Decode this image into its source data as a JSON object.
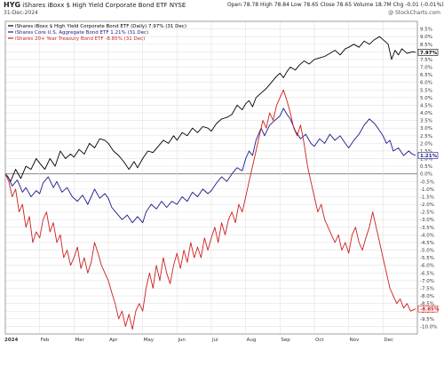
{
  "header": {
    "ticker": "HYG",
    "name": "iShares iBoxx $ High Yield Corporate Bond ETF",
    "exchange": "NYSE",
    "date": "31-Dec-2024",
    "stats": "Open 78.78 High 78.84 Low 78.65 Close 78.65 Volume 18.7M Chg -0.01 (-0.01%)",
    "watermark": "@ StockCharts.com"
  },
  "chart_data": {
    "type": "line",
    "x_start_label": "2024",
    "categories": [
      "2024",
      "Feb",
      "Mar",
      "Apr",
      "May",
      "Jun",
      "Jul",
      "Aug",
      "Sep",
      "Oct",
      "Nov",
      "Dec"
    ],
    "ylim": [
      -10.5,
      10
    ],
    "y_ticks": [
      9.5,
      9.0,
      8.5,
      8.0,
      7.5,
      7.0,
      6.5,
      6.0,
      5.5,
      5.0,
      4.5,
      4.0,
      3.5,
      3.0,
      2.5,
      2.0,
      1.5,
      1.0,
      0.5,
      0.0,
      -0.5,
      -1.0,
      -1.5,
      -2.0,
      -2.5,
      -3.0,
      -3.5,
      -4.0,
      -4.5,
      -5.0,
      -5.5,
      -6.0,
      -6.5,
      -7.0,
      -7.5,
      -8.0,
      -8.5,
      -9.0,
      -9.5,
      -10.0
    ],
    "y_tick_labels": [
      "9.5%",
      "9.0%",
      "8.5%",
      "8.0%",
      "7.5%",
      "7.0%",
      "6.5%",
      "6.0%",
      "5.5%",
      "5.0%",
      "4.5%",
      "4.0%",
      "3.5%",
      "3.0%",
      "2.5%",
      "2.0%",
      "1.5%",
      "1.0%",
      "0.5%",
      "0.0%",
      "-0.5%",
      "-1.0%",
      "-1.5%",
      "-2.0%",
      "-2.5%",
      "-3.0%",
      "-3.5%",
      "-4.0%",
      "-4.5%",
      "-5.0%",
      "-5.5%",
      "-6.0%",
      "-6.5%",
      "-7.0%",
      "-7.5%",
      "-8.0%",
      "-8.5%",
      "-9.0%",
      "-9.5%",
      "-10.0%"
    ],
    "x_max": 12,
    "series": [
      {
        "name": "iShares iBoxx $ High Yield Corporate Bond ETF (Daily) 7.97% (31 Dec)",
        "color": "#000000",
        "end_label": "7.97%",
        "end_value": 7.97,
        "points": [
          [
            0,
            0
          ],
          [
            0.08,
            -0.2
          ],
          [
            0.15,
            -0.5
          ],
          [
            0.3,
            0.3
          ],
          [
            0.45,
            -0.3
          ],
          [
            0.6,
            0.5
          ],
          [
            0.75,
            0.3
          ],
          [
            0.9,
            1.0
          ],
          [
            1.0,
            0.7
          ],
          [
            1.15,
            0.3
          ],
          [
            1.3,
            1.0
          ],
          [
            1.45,
            0.5
          ],
          [
            1.6,
            1.5
          ],
          [
            1.75,
            1.0
          ],
          [
            1.9,
            1.3
          ],
          [
            2.0,
            1.1
          ],
          [
            2.15,
            1.6
          ],
          [
            2.3,
            1.3
          ],
          [
            2.45,
            2.0
          ],
          [
            2.6,
            1.7
          ],
          [
            2.75,
            2.3
          ],
          [
            2.9,
            2.2
          ],
          [
            3.0,
            2.0
          ],
          [
            3.15,
            1.5
          ],
          [
            3.3,
            1.2
          ],
          [
            3.45,
            0.8
          ],
          [
            3.6,
            0.3
          ],
          [
            3.75,
            0.8
          ],
          [
            3.85,
            0.4
          ],
          [
            4.0,
            1.0
          ],
          [
            4.15,
            1.5
          ],
          [
            4.3,
            1.4
          ],
          [
            4.45,
            1.8
          ],
          [
            4.6,
            2.2
          ],
          [
            4.75,
            2.0
          ],
          [
            4.9,
            2.5
          ],
          [
            5.0,
            2.2
          ],
          [
            5.15,
            2.7
          ],
          [
            5.3,
            2.5
          ],
          [
            5.45,
            3.0
          ],
          [
            5.6,
            2.7
          ],
          [
            5.75,
            3.1
          ],
          [
            5.9,
            3.0
          ],
          [
            6.0,
            2.8
          ],
          [
            6.15,
            3.3
          ],
          [
            6.3,
            3.6
          ],
          [
            6.45,
            3.7
          ],
          [
            6.6,
            3.9
          ],
          [
            6.75,
            4.5
          ],
          [
            6.9,
            4.2
          ],
          [
            7.0,
            4.6
          ],
          [
            7.1,
            4.8
          ],
          [
            7.2,
            4.4
          ],
          [
            7.3,
            5.0
          ],
          [
            7.45,
            5.3
          ],
          [
            7.6,
            5.6
          ],
          [
            7.75,
            6.0
          ],
          [
            7.9,
            6.4
          ],
          [
            8.0,
            6.6
          ],
          [
            8.1,
            6.3
          ],
          [
            8.2,
            6.7
          ],
          [
            8.3,
            7.0
          ],
          [
            8.45,
            6.8
          ],
          [
            8.55,
            7.1
          ],
          [
            8.7,
            7.4
          ],
          [
            8.85,
            7.2
          ],
          [
            9.0,
            7.5
          ],
          [
            9.15,
            7.6
          ],
          [
            9.3,
            7.7
          ],
          [
            9.45,
            7.9
          ],
          [
            9.6,
            8.1
          ],
          [
            9.75,
            7.8
          ],
          [
            9.9,
            8.2
          ],
          [
            10.0,
            8.3
          ],
          [
            10.15,
            8.5
          ],
          [
            10.3,
            8.3
          ],
          [
            10.45,
            8.7
          ],
          [
            10.6,
            8.5
          ],
          [
            10.75,
            8.8
          ],
          [
            10.9,
            9.0
          ],
          [
            11.05,
            8.7
          ],
          [
            11.15,
            8.5
          ],
          [
            11.25,
            7.5
          ],
          [
            11.35,
            8.1
          ],
          [
            11.45,
            7.8
          ],
          [
            11.55,
            8.2
          ],
          [
            11.7,
            7.9
          ],
          [
            11.85,
            8.0
          ],
          [
            11.95,
            7.97
          ]
        ]
      },
      {
        "name": "iShares Core U.S. Aggregate Bond ETF 1.21% (31 Dec)",
        "color": "#1a1a8c",
        "end_label": "1.21%",
        "end_value": 1.21,
        "points": [
          [
            0,
            0
          ],
          [
            0.1,
            -0.3
          ],
          [
            0.2,
            -0.8
          ],
          [
            0.35,
            -0.4
          ],
          [
            0.5,
            -1.2
          ],
          [
            0.6,
            -0.9
          ],
          [
            0.75,
            -1.5
          ],
          [
            0.9,
            -1.1
          ],
          [
            1.0,
            -1.3
          ],
          [
            1.1,
            -0.6
          ],
          [
            1.25,
            -0.2
          ],
          [
            1.4,
            -0.9
          ],
          [
            1.5,
            -0.5
          ],
          [
            1.65,
            -1.2
          ],
          [
            1.8,
            -0.9
          ],
          [
            1.95,
            -1.5
          ],
          [
            2.1,
            -1.8
          ],
          [
            2.25,
            -1.4
          ],
          [
            2.4,
            -2.0
          ],
          [
            2.5,
            -1.5
          ],
          [
            2.6,
            -1.0
          ],
          [
            2.75,
            -1.6
          ],
          [
            2.9,
            -1.3
          ],
          [
            3.0,
            -1.6
          ],
          [
            3.1,
            -2.2
          ],
          [
            3.25,
            -2.6
          ],
          [
            3.4,
            -3.0
          ],
          [
            3.55,
            -2.7
          ],
          [
            3.7,
            -3.2
          ],
          [
            3.85,
            -2.8
          ],
          [
            4.0,
            -3.2
          ],
          [
            4.1,
            -2.5
          ],
          [
            4.25,
            -2.0
          ],
          [
            4.4,
            -2.3
          ],
          [
            4.55,
            -1.8
          ],
          [
            4.7,
            -2.2
          ],
          [
            4.85,
            -1.8
          ],
          [
            5.0,
            -2.0
          ],
          [
            5.15,
            -1.5
          ],
          [
            5.3,
            -1.8
          ],
          [
            5.45,
            -1.2
          ],
          [
            5.6,
            -1.5
          ],
          [
            5.75,
            -1.0
          ],
          [
            5.9,
            -1.3
          ],
          [
            6.0,
            -1.1
          ],
          [
            6.15,
            -0.6
          ],
          [
            6.3,
            -0.2
          ],
          [
            6.45,
            -0.5
          ],
          [
            6.6,
            0.0
          ],
          [
            6.75,
            0.4
          ],
          [
            6.9,
            0.2
          ],
          [
            7.0,
            1.0
          ],
          [
            7.1,
            1.5
          ],
          [
            7.2,
            1.2
          ],
          [
            7.3,
            2.2
          ],
          [
            7.45,
            3.0
          ],
          [
            7.55,
            2.5
          ],
          [
            7.7,
            3.2
          ],
          [
            7.85,
            3.5
          ],
          [
            8.0,
            3.8
          ],
          [
            8.1,
            4.3
          ],
          [
            8.2,
            3.9
          ],
          [
            8.3,
            3.6
          ],
          [
            8.45,
            2.8
          ],
          [
            8.6,
            2.3
          ],
          [
            8.75,
            2.6
          ],
          [
            8.9,
            2.0
          ],
          [
            9.0,
            1.8
          ],
          [
            9.15,
            2.3
          ],
          [
            9.3,
            2.0
          ],
          [
            9.45,
            2.6
          ],
          [
            9.6,
            2.2
          ],
          [
            9.75,
            2.5
          ],
          [
            9.9,
            2.0
          ],
          [
            10.0,
            1.7
          ],
          [
            10.15,
            2.2
          ],
          [
            10.3,
            2.6
          ],
          [
            10.45,
            3.2
          ],
          [
            10.6,
            3.6
          ],
          [
            10.75,
            3.3
          ],
          [
            10.85,
            3.0
          ],
          [
            11.0,
            2.5
          ],
          [
            11.1,
            2.0
          ],
          [
            11.2,
            2.2
          ],
          [
            11.3,
            1.5
          ],
          [
            11.45,
            1.7
          ],
          [
            11.6,
            1.2
          ],
          [
            11.75,
            1.5
          ],
          [
            11.85,
            1.3
          ],
          [
            11.95,
            1.21
          ]
        ]
      },
      {
        "name": "iShares 20+ Year Treasury Bond ETF -8.85% (31 Dec)",
        "color": "#cc1f1f",
        "end_label": "-8.85%",
        "end_value": -8.85,
        "points": [
          [
            0,
            0
          ],
          [
            0.1,
            -0.5
          ],
          [
            0.2,
            -1.5
          ],
          [
            0.3,
            -1.0
          ],
          [
            0.4,
            -2.5
          ],
          [
            0.5,
            -2.0
          ],
          [
            0.6,
            -3.5
          ],
          [
            0.7,
            -2.8
          ],
          [
            0.8,
            -4.5
          ],
          [
            0.9,
            -3.8
          ],
          [
            1.0,
            -4.2
          ],
          [
            1.1,
            -3.0
          ],
          [
            1.2,
            -2.5
          ],
          [
            1.3,
            -3.8
          ],
          [
            1.4,
            -3.2
          ],
          [
            1.5,
            -4.5
          ],
          [
            1.6,
            -4.0
          ],
          [
            1.7,
            -5.5
          ],
          [
            1.8,
            -5.0
          ],
          [
            1.9,
            -6.0
          ],
          [
            2.0,
            -5.5
          ],
          [
            2.1,
            -4.8
          ],
          [
            2.2,
            -6.2
          ],
          [
            2.3,
            -5.5
          ],
          [
            2.4,
            -6.5
          ],
          [
            2.5,
            -5.8
          ],
          [
            2.6,
            -4.5
          ],
          [
            2.7,
            -5.2
          ],
          [
            2.8,
            -6.0
          ],
          [
            2.9,
            -6.5
          ],
          [
            3.0,
            -7.0
          ],
          [
            3.1,
            -7.8
          ],
          [
            3.2,
            -8.5
          ],
          [
            3.3,
            -9.5
          ],
          [
            3.4,
            -9.0
          ],
          [
            3.5,
            -10.0
          ],
          [
            3.6,
            -9.2
          ],
          [
            3.7,
            -10.2
          ],
          [
            3.8,
            -9.0
          ],
          [
            3.9,
            -8.5
          ],
          [
            4.0,
            -9.0
          ],
          [
            4.1,
            -7.5
          ],
          [
            4.2,
            -6.5
          ],
          [
            4.3,
            -7.5
          ],
          [
            4.4,
            -6.0
          ],
          [
            4.5,
            -7.0
          ],
          [
            4.6,
            -5.5
          ],
          [
            4.7,
            -6.5
          ],
          [
            4.8,
            -7.2
          ],
          [
            4.9,
            -6.0
          ],
          [
            5.0,
            -5.2
          ],
          [
            5.1,
            -6.2
          ],
          [
            5.2,
            -5.0
          ],
          [
            5.3,
            -5.8
          ],
          [
            5.4,
            -4.5
          ],
          [
            5.5,
            -5.5
          ],
          [
            5.6,
            -4.8
          ],
          [
            5.7,
            -5.5
          ],
          [
            5.8,
            -4.2
          ],
          [
            5.9,
            -5.0
          ],
          [
            6.0,
            -4.2
          ],
          [
            6.1,
            -3.5
          ],
          [
            6.2,
            -4.5
          ],
          [
            6.3,
            -3.2
          ],
          [
            6.4,
            -4.0
          ],
          [
            6.5,
            -3.0
          ],
          [
            6.6,
            -2.5
          ],
          [
            6.7,
            -3.2
          ],
          [
            6.8,
            -2.0
          ],
          [
            6.9,
            -2.5
          ],
          [
            7.0,
            -1.5
          ],
          [
            7.1,
            -0.5
          ],
          [
            7.2,
            0.5
          ],
          [
            7.3,
            1.5
          ],
          [
            7.4,
            2.5
          ],
          [
            7.5,
            3.5
          ],
          [
            7.6,
            3.0
          ],
          [
            7.7,
            4.0
          ],
          [
            7.8,
            3.5
          ],
          [
            7.9,
            4.5
          ],
          [
            8.0,
            5.0
          ],
          [
            8.1,
            5.5
          ],
          [
            8.2,
            4.8
          ],
          [
            8.3,
            4.0
          ],
          [
            8.4,
            3.0
          ],
          [
            8.5,
            2.5
          ],
          [
            8.6,
            3.2
          ],
          [
            8.7,
            2.0
          ],
          [
            8.8,
            0.5
          ],
          [
            8.9,
            -0.5
          ],
          [
            9.0,
            -1.5
          ],
          [
            9.1,
            -2.5
          ],
          [
            9.2,
            -2.0
          ],
          [
            9.3,
            -3.0
          ],
          [
            9.4,
            -3.5
          ],
          [
            9.5,
            -4.0
          ],
          [
            9.6,
            -4.5
          ],
          [
            9.7,
            -4.0
          ],
          [
            9.8,
            -5.0
          ],
          [
            9.9,
            -4.5
          ],
          [
            10.0,
            -5.2
          ],
          [
            10.1,
            -4.0
          ],
          [
            10.2,
            -3.5
          ],
          [
            10.3,
            -4.5
          ],
          [
            10.4,
            -5.0
          ],
          [
            10.5,
            -4.2
          ],
          [
            10.6,
            -3.5
          ],
          [
            10.7,
            -2.5
          ],
          [
            10.8,
            -3.5
          ],
          [
            10.9,
            -4.5
          ],
          [
            11.0,
            -5.5
          ],
          [
            11.1,
            -6.5
          ],
          [
            11.2,
            -7.5
          ],
          [
            11.3,
            -8.0
          ],
          [
            11.4,
            -8.5
          ],
          [
            11.5,
            -8.2
          ],
          [
            11.6,
            -8.8
          ],
          [
            11.7,
            -8.5
          ],
          [
            11.8,
            -9.0
          ],
          [
            11.95,
            -8.85
          ]
        ]
      }
    ]
  }
}
